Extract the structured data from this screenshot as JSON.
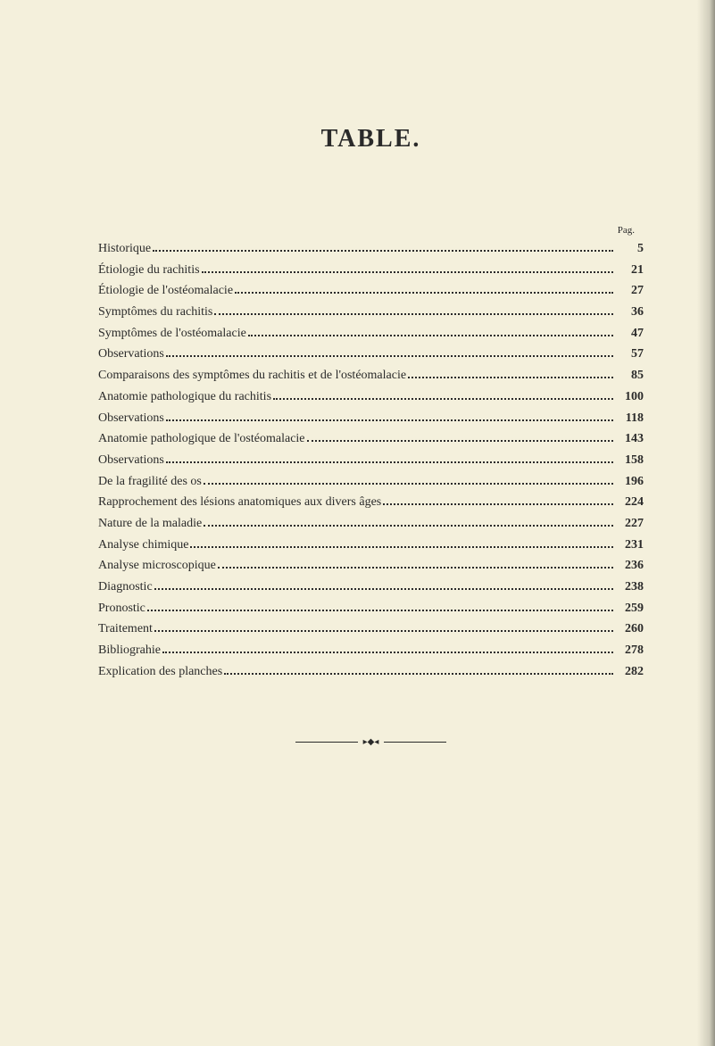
{
  "title": "TABLE.",
  "pag_label": "Pag.",
  "entries": [
    {
      "label": "Historique",
      "page": "5"
    },
    {
      "label": "Étiologie du rachitis",
      "page": "21"
    },
    {
      "label": "Étiologie de l'ostéomalacie",
      "page": "27"
    },
    {
      "label": "Symptômes du rachitis",
      "page": "36"
    },
    {
      "label": "Symptômes de l'ostéomalacie",
      "page": "47"
    },
    {
      "label": "Observations",
      "page": "57"
    },
    {
      "label": "Comparaisons des symptômes du rachitis et de l'ostéomalacie",
      "page": "85"
    },
    {
      "label": "Anatomie pathologique du rachitis",
      "page": "100"
    },
    {
      "label": "Observations",
      "page": "118"
    },
    {
      "label": "Anatomie pathologique de l'ostéomalacie",
      "page": "143"
    },
    {
      "label": "Observations",
      "page": "158"
    },
    {
      "label": "De la fragilité des os",
      "page": "196"
    },
    {
      "label": "Rapprochement des lésions anatomiques aux divers âges",
      "page": "224"
    },
    {
      "label": "Nature de la maladie",
      "page": "227"
    },
    {
      "label": "Analyse chimique",
      "page": "231"
    },
    {
      "label": "Analyse microscopique",
      "page": "236"
    },
    {
      "label": "Diagnostic",
      "page": "238"
    },
    {
      "label": "Pronostic",
      "page": "259"
    },
    {
      "label": "Traitement",
      "page": "260"
    },
    {
      "label": "Bibliograhie",
      "page": "278"
    },
    {
      "label": "Explication des planches",
      "page": "282"
    }
  ],
  "colors": {
    "background": "#f4f0dc",
    "text": "#2a2a2a"
  },
  "typography": {
    "title_fontsize": 28,
    "entry_fontsize": 14,
    "pag_fontsize": 11,
    "font_family": "Georgia, Times New Roman, serif"
  }
}
